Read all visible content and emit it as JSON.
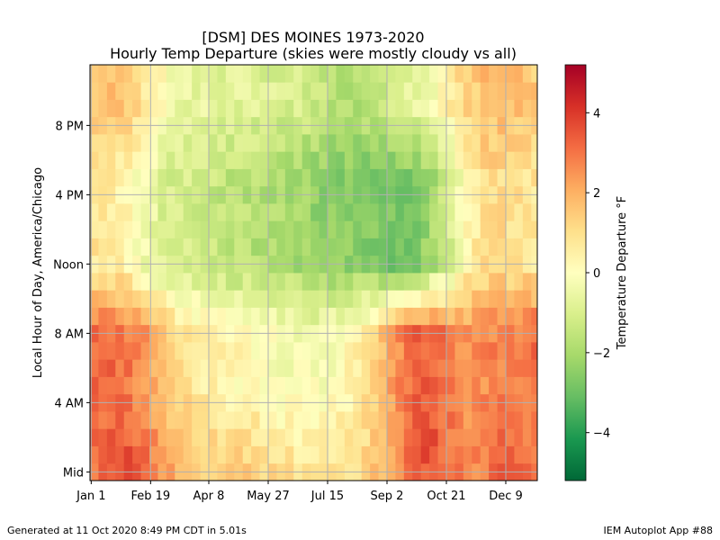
{
  "chart_data": {
    "type": "heatmap",
    "title": "[DSM] DES MOINES 1973-2020",
    "subtitle": "Hourly Temp Departure (skies were mostly cloudy vs all)",
    "ylabel": "Local Hour of Day, America/Chicago",
    "colorbar_label": "Temperature Departure °F",
    "xticks": [
      {
        "label": "Jan 1",
        "day": 1
      },
      {
        "label": "Feb 19",
        "day": 50
      },
      {
        "label": "Apr 8",
        "day": 98
      },
      {
        "label": "May 27",
        "day": 147
      },
      {
        "label": "Jul 15",
        "day": 196
      },
      {
        "label": "Sep 2",
        "day": 245
      },
      {
        "label": "Oct 21",
        "day": 294
      },
      {
        "label": "Dec 9",
        "day": 343
      }
    ],
    "yticks": [
      {
        "label": "Mid",
        "hour": 0
      },
      {
        "label": "4 AM",
        "hour": 4
      },
      {
        "label": "8 AM",
        "hour": 8
      },
      {
        "label": "Noon",
        "hour": 12
      },
      {
        "label": "4 PM",
        "hour": 16
      },
      {
        "label": "8 PM",
        "hour": 20
      }
    ],
    "colorbar_ticks": [
      {
        "label": "−4",
        "value": -4
      },
      {
        "label": "−2",
        "value": -2
      },
      {
        "label": "0",
        "value": 0
      },
      {
        "label": "2",
        "value": 2
      },
      {
        "label": "4",
        "value": 4
      }
    ],
    "xlim": [
      0,
      369
    ],
    "ylim": [
      -0.5,
      23.5
    ],
    "clim": [
      -5.2,
      5.2
    ],
    "colormap": "RdYlGn_r",
    "bin_days": 7,
    "grid": true,
    "seasonal_profile": {
      "week_centers": [
        3,
        17,
        31,
        45,
        59,
        73,
        87,
        101,
        115,
        129,
        143,
        157,
        171,
        185,
        199,
        213,
        227,
        241,
        255,
        269,
        283,
        297,
        311,
        325,
        339,
        353,
        367
      ],
      "night": [
        3.0,
        3.4,
        3.6,
        3.3,
        2.6,
        2.0,
        1.6,
        1.5,
        1.5,
        1.4,
        1.3,
        1.1,
        0.9,
        0.7,
        0.7,
        1.0,
        1.3,
        1.8,
        2.6,
        3.5,
        3.6,
        3.0,
        2.6,
        2.9,
        3.2,
        3.1,
        3.0
      ],
      "morning": [
        3.2,
        3.2,
        3.0,
        2.4,
        1.6,
        1.0,
        0.7,
        0.5,
        0.3,
        0.2,
        0.0,
        -0.2,
        -0.2,
        -0.2,
        -0.1,
        0.3,
        0.8,
        1.6,
        2.6,
        3.4,
        3.3,
        2.8,
        2.4,
        2.6,
        2.8,
        2.8,
        3.2
      ],
      "day": [
        0.8,
        0.6,
        0.3,
        -0.4,
        -0.9,
        -1.1,
        -1.2,
        -1.4,
        -1.6,
        -1.7,
        -1.8,
        -1.9,
        -2.1,
        -2.3,
        -2.5,
        -2.6,
        -2.6,
        -2.8,
        -2.9,
        -2.7,
        -2.0,
        -1.0,
        0.3,
        1.0,
        1.1,
        0.9,
        0.8
      ],
      "evening": [
        1.5,
        1.6,
        1.4,
        0.7,
        0.1,
        -0.4,
        -0.6,
        -0.7,
        -0.8,
        -0.8,
        -0.9,
        -1.0,
        -1.1,
        -1.3,
        -1.6,
        -1.8,
        -1.7,
        -1.4,
        -1.0,
        -0.6,
        -0.3,
        0.6,
        1.3,
        1.7,
        1.8,
        1.7,
        1.5
      ]
    }
  },
  "footer": {
    "left": "Generated at 11 Oct 2020 8:49 PM CDT in 5.01s",
    "right": "IEM Autoplot App #88"
  }
}
